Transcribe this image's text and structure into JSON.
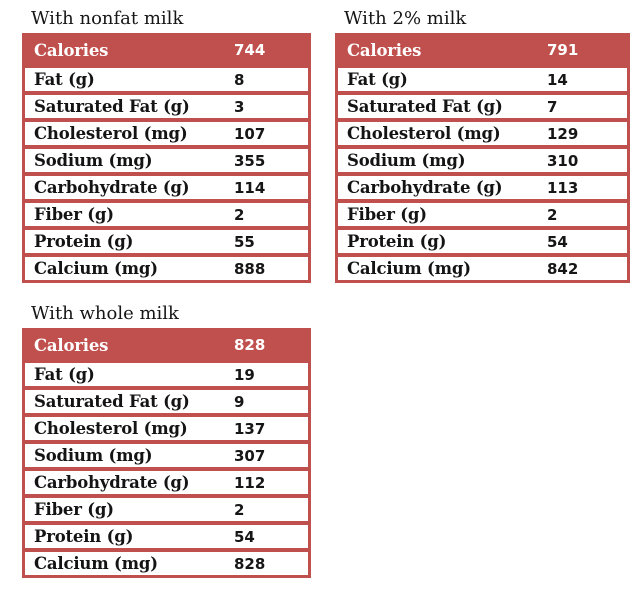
{
  "page": {
    "background": "#FFFFFF"
  },
  "colors": {
    "accent_red": "#C0504D",
    "header_text": "#FFFFFF",
    "body_text": "#141414",
    "row_background": "#FFFFFF"
  },
  "chart_data": [
    {
      "type": "table",
      "title": "With nonfat milk",
      "header_row": {
        "label": "Calories",
        "value": "744"
      },
      "rows": [
        {
          "label": "Fat (g)",
          "value": "8"
        },
        {
          "label": "Saturated Fat (g)",
          "value": "3"
        },
        {
          "label": "Cholesterol (mg)",
          "value": "107"
        },
        {
          "label": "Sodium (mg)",
          "value": "355"
        },
        {
          "label": "Carbohydrate (g)",
          "value": "114"
        },
        {
          "label": "Fiber (g)",
          "value": "2"
        },
        {
          "label": "Protein (g)",
          "value": "55"
        },
        {
          "label": "Calcium (mg)",
          "value": "888"
        }
      ]
    },
    {
      "type": "table",
      "title": "With 2% milk",
      "header_row": {
        "label": "Calories",
        "value": "791"
      },
      "rows": [
        {
          "label": "Fat (g)",
          "value": "14"
        },
        {
          "label": "Saturated Fat (g)",
          "value": "7"
        },
        {
          "label": "Cholesterol (mg)",
          "value": "129"
        },
        {
          "label": "Sodium (mg)",
          "value": "310"
        },
        {
          "label": "Carbohydrate (g)",
          "value": "113"
        },
        {
          "label": "Fiber (g)",
          "value": "2"
        },
        {
          "label": "Protein (g)",
          "value": "54"
        },
        {
          "label": "Calcium (mg)",
          "value": "842"
        }
      ]
    },
    {
      "type": "table",
      "title": "With whole milk",
      "header_row": {
        "label": "Calories",
        "value": "828"
      },
      "rows": [
        {
          "label": "Fat (g)",
          "value": "19"
        },
        {
          "label": "Saturated Fat (g)",
          "value": "9"
        },
        {
          "label": "Cholesterol (mg)",
          "value": "137"
        },
        {
          "label": "Sodium (mg)",
          "value": "307"
        },
        {
          "label": "Carbohydrate (g)",
          "value": "112"
        },
        {
          "label": "Fiber (g)",
          "value": "2"
        },
        {
          "label": "Protein (g)",
          "value": "54"
        },
        {
          "label": "Calcium (mg)",
          "value": "828"
        }
      ]
    }
  ]
}
